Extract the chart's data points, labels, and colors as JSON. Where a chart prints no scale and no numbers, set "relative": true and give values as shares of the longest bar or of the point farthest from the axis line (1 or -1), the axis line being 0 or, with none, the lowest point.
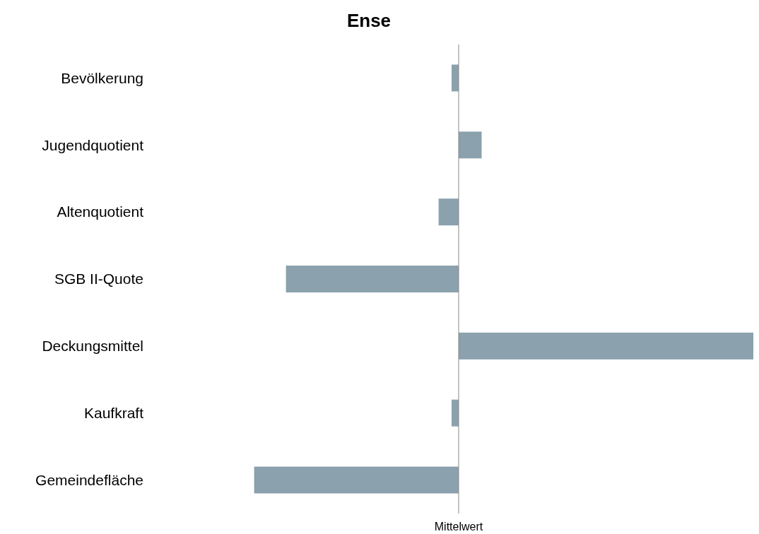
{
  "chart_data": {
    "type": "bar",
    "title": "Ense",
    "orientation": "horizontal",
    "relative": true,
    "categories": [
      "Bevölkerung",
      "Jugendquotient",
      "Altenquotient",
      "SGB II-Quote",
      "Deckungsmittel",
      "Kaufkraft",
      "Gemeindefläche"
    ],
    "values": [
      -0.024,
      0.078,
      -0.068,
      -0.586,
      1,
      -0.024,
      -0.694
    ],
    "color": "#8ba1ad",
    "ref_lines": [
      {
        "axis": "x",
        "value": 0,
        "label": "Mittelwert"
      }
    ]
  }
}
